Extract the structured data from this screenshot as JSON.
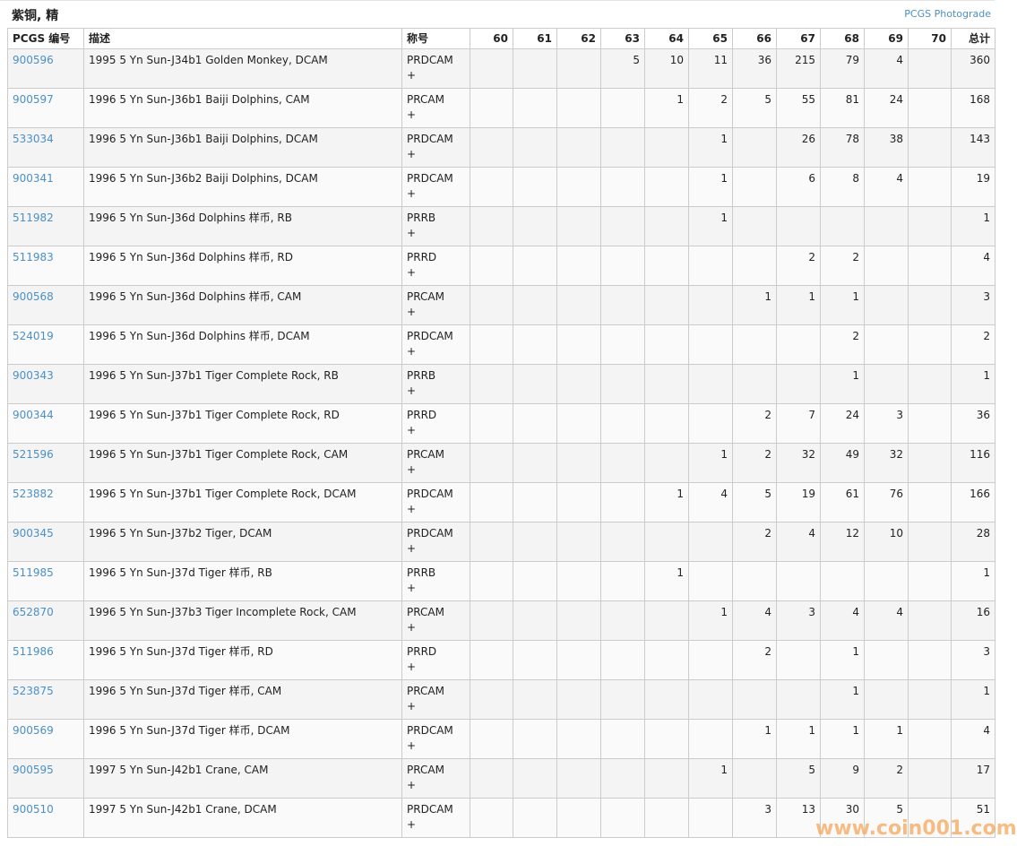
{
  "title": "紫铜, 精",
  "photograde_link": "PCGS Photograde",
  "headers": [
    "PCGS 编号",
    "描述",
    "称号",
    "60",
    "61",
    "62",
    "63",
    "64",
    "65",
    "66",
    "67",
    "68",
    "69",
    "70",
    "总计"
  ],
  "watermark": "www.coin001.com",
  "rows": [
    {
      "id": "900596",
      "desc": "1995 5 Yn Sun-J34b1 Golden Monkey, DCAM",
      "des": "PRDCAM",
      "plus": "+",
      "g": [
        "",
        "",
        "",
        "5",
        "10",
        "11",
        "36",
        "215",
        "79",
        "4",
        ""
      ],
      "total": "360"
    },
    {
      "id": "900597",
      "desc": "1996 5 Yn Sun-J36b1 Baiji Dolphins, CAM",
      "des": "PRCAM",
      "plus": "+",
      "g": [
        "",
        "",
        "",
        "",
        "1",
        "2",
        "5",
        "55",
        "81",
        "24",
        ""
      ],
      "total": "168"
    },
    {
      "id": "533034",
      "desc": "1996 5 Yn Sun-J36b1 Baiji Dolphins, DCAM",
      "des": "PRDCAM",
      "plus": "+",
      "g": [
        "",
        "",
        "",
        "",
        "",
        "1",
        "",
        "26",
        "78",
        "38",
        ""
      ],
      "total": "143"
    },
    {
      "id": "900341",
      "desc": "1996 5 Yn Sun-J36b2 Baiji Dolphins, DCAM",
      "des": "PRDCAM",
      "plus": "+",
      "g": [
        "",
        "",
        "",
        "",
        "",
        "1",
        "",
        "6",
        "8",
        "4",
        ""
      ],
      "total": "19"
    },
    {
      "id": "511982",
      "desc": "1996 5 Yn Sun-J36d Dolphins 样币, RB",
      "des": "PRRB",
      "plus": "+",
      "g": [
        "",
        "",
        "",
        "",
        "",
        "1",
        "",
        "",
        "",
        "",
        ""
      ],
      "total": "1"
    },
    {
      "id": "511983",
      "desc": "1996 5 Yn Sun-J36d Dolphins 样币, RD",
      "des": "PRRD",
      "plus": "+",
      "g": [
        "",
        "",
        "",
        "",
        "",
        "",
        "",
        "2",
        "2",
        "",
        ""
      ],
      "total": "4"
    },
    {
      "id": "900568",
      "desc": "1996 5 Yn Sun-J36d Dolphins 样币, CAM",
      "des": "PRCAM",
      "plus": "+",
      "g": [
        "",
        "",
        "",
        "",
        "",
        "",
        "1",
        "1",
        "1",
        "",
        ""
      ],
      "total": "3"
    },
    {
      "id": "524019",
      "desc": "1996 5 Yn Sun-J36d Dolphins 样币, DCAM",
      "des": "PRDCAM",
      "plus": "+",
      "g": [
        "",
        "",
        "",
        "",
        "",
        "",
        "",
        "",
        "2",
        "",
        ""
      ],
      "total": "2"
    },
    {
      "id": "900343",
      "desc": "1996 5 Yn Sun-J37b1 Tiger Complete Rock, RB",
      "des": "PRRB",
      "plus": "+",
      "g": [
        "",
        "",
        "",
        "",
        "",
        "",
        "",
        "",
        "1",
        "",
        ""
      ],
      "total": "1"
    },
    {
      "id": "900344",
      "desc": "1996 5 Yn Sun-J37b1 Tiger Complete Rock, RD",
      "des": "PRRD",
      "plus": "+",
      "g": [
        "",
        "",
        "",
        "",
        "",
        "",
        "2",
        "7",
        "24",
        "3",
        ""
      ],
      "total": "36"
    },
    {
      "id": "521596",
      "desc": "1996 5 Yn Sun-J37b1 Tiger Complete Rock, CAM",
      "des": "PRCAM",
      "plus": "+",
      "g": [
        "",
        "",
        "",
        "",
        "",
        "1",
        "2",
        "32",
        "49",
        "32",
        ""
      ],
      "total": "116"
    },
    {
      "id": "523882",
      "desc": "1996 5 Yn Sun-J37b1 Tiger Complete Rock, DCAM",
      "des": "PRDCAM",
      "plus": "+",
      "g": [
        "",
        "",
        "",
        "",
        "1",
        "4",
        "5",
        "19",
        "61",
        "76",
        ""
      ],
      "total": "166"
    },
    {
      "id": "900345",
      "desc": "1996 5 Yn Sun-J37b2 Tiger, DCAM",
      "des": "PRDCAM",
      "plus": "+",
      "g": [
        "",
        "",
        "",
        "",
        "",
        "",
        "2",
        "4",
        "12",
        "10",
        ""
      ],
      "total": "28"
    },
    {
      "id": "511985",
      "desc": "1996 5 Yn Sun-J37d Tiger 样币, RB",
      "des": "PRRB",
      "plus": "+",
      "g": [
        "",
        "",
        "",
        "",
        "1",
        "",
        "",
        "",
        "",
        "",
        ""
      ],
      "total": "1"
    },
    {
      "id": "652870",
      "desc": "1996 5 Yn Sun-J37b3 Tiger Incomplete Rock, CAM",
      "des": "PRCAM",
      "plus": "+",
      "g": [
        "",
        "",
        "",
        "",
        "",
        "1",
        "4",
        "3",
        "4",
        "4",
        ""
      ],
      "total": "16"
    },
    {
      "id": "511986",
      "desc": "1996 5 Yn Sun-J37d Tiger 样币, RD",
      "des": "PRRD",
      "plus": "+",
      "g": [
        "",
        "",
        "",
        "",
        "",
        "",
        "2",
        "",
        "1",
        "",
        ""
      ],
      "total": "3"
    },
    {
      "id": "523875",
      "desc": "1996 5 Yn Sun-J37d Tiger 样币, CAM",
      "des": "PRCAM",
      "plus": "+",
      "g": [
        "",
        "",
        "",
        "",
        "",
        "",
        "",
        "",
        "1",
        "",
        ""
      ],
      "total": "1"
    },
    {
      "id": "900569",
      "desc": "1996 5 Yn Sun-J37d Tiger 样币, DCAM",
      "des": "PRDCAM",
      "plus": "+",
      "g": [
        "",
        "",
        "",
        "",
        "",
        "",
        "1",
        "1",
        "1",
        "1",
        ""
      ],
      "total": "4"
    },
    {
      "id": "900595",
      "desc": "1997 5 Yn Sun-J42b1 Crane, CAM",
      "des": "PRCAM",
      "plus": "+",
      "g": [
        "",
        "",
        "",
        "",
        "",
        "1",
        "",
        "5",
        "9",
        "2",
        ""
      ],
      "total": "17"
    },
    {
      "id": "900510",
      "desc": "1997 5 Yn Sun-J42b1 Crane, DCAM",
      "des": "PRDCAM",
      "plus": "+",
      "g": [
        "",
        "",
        "",
        "",
        "",
        "",
        "3",
        "13",
        "30",
        "5",
        ""
      ],
      "total": "51"
    }
  ]
}
